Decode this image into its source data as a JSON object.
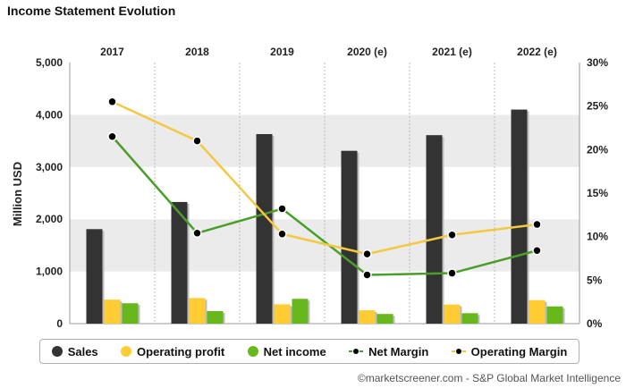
{
  "title": "Income Statement Evolution",
  "source": "©marketscreener.com - S&P Global Market Intelligence",
  "chart_data": {
    "type": "bar",
    "categories": [
      "2017",
      "2018",
      "2019",
      "2020 (e)",
      "2021 (e)",
      "2022 (e)"
    ],
    "ylabel": "Million USD",
    "ylim": [
      0,
      5000
    ],
    "y_ticks": [
      "0",
      "1,000",
      "2,000",
      "3,000",
      "4,000",
      "5,000"
    ],
    "y2lim": [
      0,
      30
    ],
    "y2_ticks": [
      "0%",
      "5%",
      "10%",
      "15%",
      "20%",
      "25%",
      "30%"
    ],
    "series": [
      {
        "name": "Sales",
        "type": "bar",
        "axis": "left",
        "color": "#333333",
        "values": [
          1810,
          2330,
          3630,
          3310,
          3610,
          4100
        ]
      },
      {
        "name": "Operating profit",
        "type": "bar",
        "axis": "left",
        "color": "#ffcc33",
        "values": [
          460,
          490,
          370,
          255,
          365,
          450
        ]
      },
      {
        "name": "Net income",
        "type": "bar",
        "axis": "left",
        "color": "#66b81c",
        "values": [
          390,
          240,
          475,
          185,
          200,
          330
        ]
      },
      {
        "name": "Net Margin",
        "type": "line",
        "axis": "right",
        "color": "#4a9e2a",
        "values": [
          21.5,
          10.4,
          13.2,
          5.6,
          5.8,
          8.4
        ]
      },
      {
        "name": "Operating Margin",
        "type": "line",
        "axis": "right",
        "color": "#f5c842",
        "values": [
          25.5,
          21.0,
          10.3,
          8.0,
          10.2,
          11.4
        ]
      }
    ],
    "legend": {
      "position": "bottom"
    },
    "grid": "alternating-bands"
  }
}
